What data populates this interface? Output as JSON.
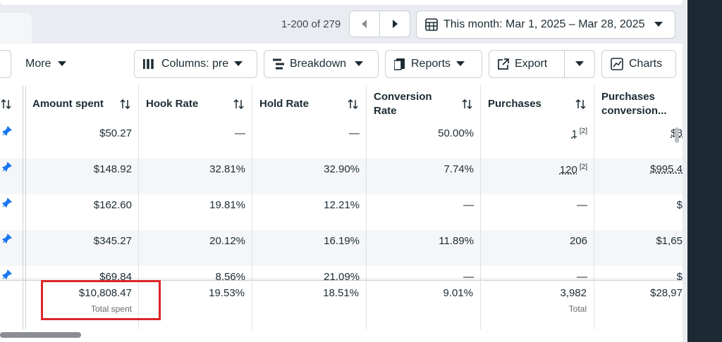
{
  "pagination": {
    "range": "1-200 of 279"
  },
  "date_range": "This month: Mar 1, 2025 – Mar 28, 2025",
  "toolbar": {
    "more": "More",
    "columns": "Columns: pre",
    "breakdown": "Breakdown",
    "reports": "Reports",
    "export": "Export",
    "charts": "Charts"
  },
  "table": {
    "headers": [
      "Amount spent",
      "Hook Rate",
      "Hold Rate",
      "Conversion Rate",
      "Purchases",
      "Purchases conversion..."
    ],
    "rows": [
      [
        "$50.27",
        "—",
        "—",
        "50.00%",
        {
          "text": "1",
          "note": "[2]"
        },
        "$8"
      ],
      [
        "$148.92",
        "32.81%",
        "32.90%",
        "7.74%",
        {
          "text": "120",
          "note": "[2]"
        },
        "$995.4"
      ],
      [
        "$162.60",
        "19.81%",
        "12.21%",
        "—",
        "—",
        "$"
      ],
      [
        "$345.27",
        "20.12%",
        "16.19%",
        "11.89%",
        "206",
        "$1,65"
      ],
      [
        "$69.84",
        "8.56%",
        "21.09%",
        "—",
        "—",
        "$"
      ]
    ],
    "totals": [
      {
        "value": "$10,808.47",
        "label": "Total spent"
      },
      {
        "value": "19.53%"
      },
      {
        "value": "18.51%"
      },
      {
        "value": "9.01%"
      },
      {
        "value": "3,982",
        "label": "Total"
      },
      {
        "value": "$28,97"
      }
    ]
  }
}
